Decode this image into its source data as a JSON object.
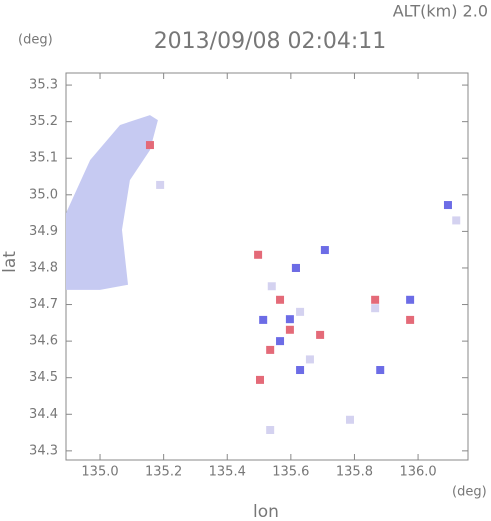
{
  "chart_data": {
    "type": "scatter",
    "altitude_label": "ALT(km) 2.0",
    "title": "2013/09/08 02:04:11",
    "y_unit": "(deg)",
    "x_unit": "(deg)",
    "x_label": "lon",
    "y_label": "lat",
    "xlim": [
      134.893,
      136.157
    ],
    "ylim": [
      34.275,
      35.333
    ],
    "xticks": [
      {
        "value": 135,
        "label": "135.0"
      },
      135.2,
      135.4,
      135.6,
      135.8,
      {
        "value": 136,
        "label": "136.0"
      }
    ],
    "yticks": [
      34.3,
      34.4,
      34.5,
      34.6,
      34.7,
      34.8,
      34.9,
      {
        "value": 35,
        "label": "35.0"
      },
      35.1,
      35.2,
      35.3
    ],
    "grid": false,
    "area": {
      "color": "#c6caf2",
      "x": [
        134.893,
        134.969,
        135.063,
        135.157,
        135.182,
        135.157,
        135.094,
        135.069,
        135.088,
        135.0,
        134.893
      ],
      "y": [
        34.95,
        35.095,
        35.191,
        35.218,
        35.204,
        35.122,
        35.04,
        34.904,
        34.754,
        34.74,
        34.74
      ]
    },
    "series": [
      {
        "color": "#e46a78",
        "x": [
          135.497,
          135.566,
          135.597,
          135.535,
          135.692,
          135.865,
          135.975,
          135.157,
          135.503,
          135.616
        ],
        "y": [
          34.836,
          34.713,
          34.631,
          34.576,
          34.617,
          34.713,
          34.658,
          35.136,
          34.494,
          34.8
        ]
      },
      {
        "color": "#6c6ce6",
        "x": [
          135.616,
          135.597,
          135.629,
          135.881,
          136.094,
          135.707,
          135.513,
          135.975,
          135.566
        ],
        "y": [
          34.8,
          34.66,
          34.521,
          34.521,
          34.972,
          34.849,
          34.658,
          34.713,
          34.6
        ]
      },
      {
        "color": "#d4d2f0",
        "x": [
          135.189,
          135.786,
          135.535,
          135.629,
          135.865,
          135.66,
          135.54,
          136.12
        ],
        "y": [
          35.027,
          34.385,
          34.357,
          34.68,
          34.69,
          34.55,
          34.75,
          34.93
        ]
      }
    ]
  }
}
